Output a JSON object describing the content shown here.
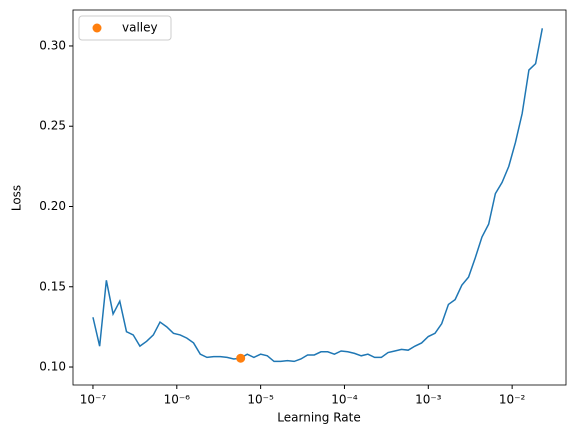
{
  "chart_data": {
    "type": "line",
    "xlabel": "Learning Rate",
    "ylabel": "Loss",
    "xscale": "log",
    "xlim": [
      5.78e-08,
      0.0439
    ],
    "ylim": [
      0.0888,
      0.3224
    ],
    "xticks": [
      {
        "value": 1e-07,
        "label": "10⁻⁷"
      },
      {
        "value": 1e-06,
        "label": "10⁻⁶"
      },
      {
        "value": 1e-05,
        "label": "10⁻⁵"
      },
      {
        "value": 0.0001,
        "label": "10⁻⁴"
      },
      {
        "value": 0.001,
        "label": "10⁻³"
      },
      {
        "value": 0.01,
        "label": "10⁻²"
      }
    ],
    "yticks": [
      {
        "value": 0.1,
        "label": "0.10"
      },
      0.15,
      {
        "value": 0.2,
        "label": "0.20"
      },
      0.25,
      {
        "value": 0.3,
        "label": "0.30"
      }
    ],
    "legend": "upper left",
    "series": [
      {
        "color": "#1f77b4",
        "x": [
          1e-07,
          1.202e-07,
          1.445e-07,
          1.738e-07,
          2.089e-07,
          2.512e-07,
          3.02e-07,
          3.631e-07,
          4.365e-07,
          5.248e-07,
          6.31e-07,
          7.586e-07,
          9.12e-07,
          1.096e-06,
          1.318e-06,
          1.585e-06,
          1.905e-06,
          2.291e-06,
          2.754e-06,
          3.311e-06,
          3.981e-06,
          4.786e-06,
          5.754e-06,
          6.918e-06,
          8.318e-06,
          1e-05,
          1.202e-05,
          1.445e-05,
          1.738e-05,
          2.089e-05,
          2.512e-05,
          3.02e-05,
          3.631e-05,
          4.365e-05,
          5.248e-05,
          6.31e-05,
          7.586e-05,
          9.12e-05,
          0.0001096,
          0.0001318,
          0.0001585,
          0.0001905,
          0.0002291,
          0.0002754,
          0.0003311,
          0.0003981,
          0.0004786,
          0.0005754,
          0.0006918,
          0.0008318,
          0.001,
          0.001202,
          0.001445,
          0.001738,
          0.002089,
          0.002512,
          0.00302,
          0.003631,
          0.004365,
          0.005248,
          0.00631,
          0.007586,
          0.00912,
          0.01096,
          0.01318,
          0.01585,
          0.01905,
          0.02291
        ],
        "values": [
          0.131,
          0.113,
          0.154,
          0.133,
          0.141,
          0.122,
          0.12,
          0.113,
          0.116,
          0.12,
          0.128,
          0.125,
          0.121,
          0.12,
          0.118,
          0.115,
          0.108,
          0.106,
          0.1065,
          0.1065,
          0.106,
          0.105,
          0.1055,
          0.108,
          0.106,
          0.108,
          0.107,
          0.1035,
          0.1035,
          0.104,
          0.1035,
          0.105,
          0.1075,
          0.1075,
          0.1095,
          0.1095,
          0.108,
          0.11,
          0.1095,
          0.1085,
          0.107,
          0.108,
          0.106,
          0.106,
          0.109,
          0.11,
          0.111,
          0.1105,
          0.113,
          0.115,
          0.119,
          0.121,
          0.127,
          0.139,
          0.142,
          0.151,
          0.156,
          0.168,
          0.181,
          0.189,
          0.208,
          0.215,
          0.225,
          0.24,
          0.258,
          0.285,
          0.289,
          0.311
        ]
      },
      {
        "name": "valley",
        "type": "scatter",
        "color": "#ff7f0e",
        "x": [
          5.78e-06
        ],
        "values": [
          0.1055
        ]
      }
    ]
  }
}
